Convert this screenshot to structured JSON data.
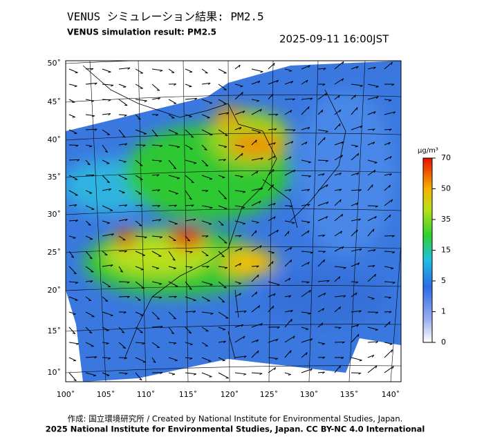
{
  "header": {
    "title_ja": "VENUS シミュレーション結果: PM2.5",
    "title_en": "VENUS simulation result: PM2.5",
    "datetime": "2025-09-11 16:00JST"
  },
  "map": {
    "lat_labels": [
      "50˚",
      "45˚",
      "40˚",
      "35˚",
      "30˚",
      "25˚",
      "20˚",
      "15˚",
      "10˚"
    ],
    "lon_labels": [
      "100˚",
      "105˚",
      "110˚",
      "115˚",
      "120˚",
      "125˚",
      "130˚",
      "135˚",
      "140˚"
    ]
  },
  "colorbar": {
    "unit": "μg/m³",
    "labels": [
      "70",
      "50",
      "35",
      "15",
      "5",
      "1",
      "0"
    ]
  },
  "footer": {
    "credit": "作成: 国立環境研究所 / Created by National Institute for Environmental Studies, Japan.",
    "license": "2025 National Institute for Environmental Studies, Japan. CC BY-NC 4.0 International"
  }
}
